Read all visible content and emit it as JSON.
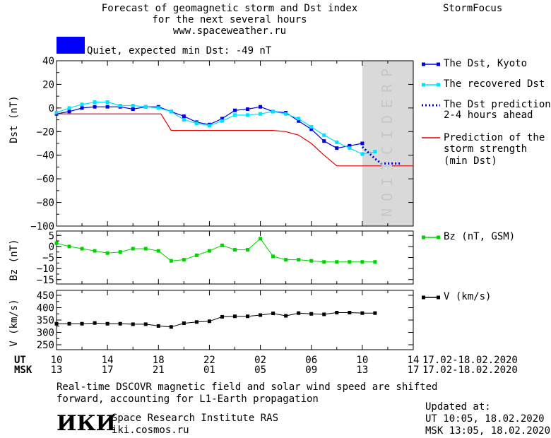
{
  "header": {
    "title_lines": [
      "Forecast of geomagnetic storm and Dst index",
      "for the next several hours",
      "www.spaceweather.ru"
    ],
    "brand": "StormFocus"
  },
  "status": {
    "text": "Quiet, expected min Dst: -49 nT",
    "color": "#0000ff"
  },
  "legend": {
    "dst_kyoto": "The Dst, Kyoto",
    "dst_recovered": "The recovered Dst",
    "dst_prediction_lines": [
      "The Dst prediction",
      "2-4 hours ahead"
    ],
    "storm_strength_lines": [
      "Prediction of the",
      "storm strength",
      "(min Dst)"
    ],
    "bz": "Bz (nT, GSM)",
    "v": "V (km/s)"
  },
  "prediction_label": "PREDICTION",
  "time_axis": {
    "ut_label": "UT",
    "msk_label": "MSK",
    "ut_ticks": [
      "10",
      "14",
      "18",
      "22",
      "02",
      "06",
      "10",
      "14"
    ],
    "msk_ticks": [
      "13",
      "17",
      "21",
      "01",
      "05",
      "09",
      "13",
      "17"
    ],
    "date_range_ut": "17.02-18.02.2020",
    "date_range_msk": "17.02-18.02.2020"
  },
  "footer": {
    "note_lines": [
      "Real-time DSCOVR magnetic field and solar wind speed are shifted",
      "forward, accounting for L1-Earth propagation"
    ],
    "logo_text": "ИКИ",
    "institute": "Space Research Institute RAS",
    "site": "iki.cosmos.ru",
    "updated_label": "Updated at:",
    "updated_ut": "UT   10:05, 18.02.2020",
    "updated_msk": "MSK 13:05, 18.02.2020"
  },
  "chart_data": [
    {
      "type": "line",
      "ylabel": "Dst (nT)",
      "ylim": [
        -100,
        40
      ],
      "yticks": [
        "40",
        "20",
        "0",
        "-20",
        "-40",
        "-60",
        "-80",
        "-100"
      ],
      "x_unit": "hours after 10 UT 17.02",
      "xlim": [
        0,
        28
      ],
      "prediction_zone": [
        24,
        28
      ],
      "series": [
        {
          "name": "The Dst, Kyoto",
          "color": "#0000dd",
          "x": [
            0,
            1,
            2,
            3,
            4,
            5,
            6,
            7,
            8,
            9,
            10,
            11,
            12,
            13,
            14,
            15,
            16,
            17,
            18,
            19,
            20,
            21,
            22,
            23,
            24
          ],
          "y": [
            -5,
            -3,
            0,
            1,
            1,
            1,
            -1,
            1,
            1,
            -3,
            -7,
            -12,
            -14,
            -9,
            -2,
            -1,
            1,
            -3,
            -4,
            -11,
            -18,
            -28,
            -34,
            -32,
            -30
          ]
        },
        {
          "name": "The recovered Dst",
          "color": "#00e0ff",
          "x": [
            0,
            1,
            2,
            3,
            4,
            5,
            6,
            7,
            8,
            9,
            10,
            11,
            12,
            13,
            14,
            15,
            16,
            17,
            18,
            19,
            20,
            21,
            22,
            23,
            24,
            25
          ],
          "y": [
            -4,
            0,
            3,
            5,
            5,
            2,
            2,
            1,
            0,
            -3,
            -10,
            -13,
            -15,
            -11,
            -6,
            -6,
            -5,
            -3,
            -5,
            -9,
            -16,
            -23,
            -29,
            -34,
            -39,
            -37
          ]
        },
        {
          "name": "The Dst prediction 2-4 hours ahead",
          "color": "#0000cc",
          "x": [
            24,
            25,
            25.5,
            27
          ],
          "y": [
            -33,
            -43,
            -47,
            -47
          ]
        },
        {
          "name": "Prediction of the storm strength (min Dst)",
          "color": "#dd0000",
          "x": [
            0,
            8.2,
            9,
            14,
            16,
            17,
            18,
            19,
            20,
            21,
            22,
            28
          ],
          "y": [
            -5,
            -5,
            -19,
            -19,
            -19,
            -19,
            -20,
            -23,
            -30,
            -40,
            -49,
            -49
          ]
        }
      ]
    },
    {
      "type": "line",
      "ylabel": "Bz (nT)",
      "ylim": [
        -17,
        7
      ],
      "yticks": [
        "5",
        "0",
        "-5",
        "-10",
        "-15"
      ],
      "series": [
        {
          "name": "Bz (nT, GSM)",
          "color": "#00d000",
          "x": [
            0,
            1,
            2,
            3,
            4,
            5,
            6,
            7,
            8,
            9,
            10,
            11,
            12,
            13,
            14,
            15,
            16,
            17,
            18,
            19,
            20,
            21,
            22,
            23,
            24,
            25
          ],
          "y": [
            1.5,
            0,
            -1,
            -2,
            -3,
            -2.5,
            -1,
            -1,
            -2,
            -6.5,
            -6,
            -4,
            -2,
            0.5,
            -1.5,
            -1.5,
            3.5,
            -4.5,
            -6,
            -6,
            -6.5,
            -7,
            -7,
            -7,
            -7,
            -7
          ]
        }
      ]
    },
    {
      "type": "line",
      "ylabel": "V (km/s)",
      "ylim": [
        230,
        470
      ],
      "yticks": [
        "450",
        "400",
        "350",
        "300",
        "250"
      ],
      "series": [
        {
          "name": "V (km/s)",
          "color": "#000000",
          "x": [
            0,
            1,
            2,
            3,
            4,
            5,
            6,
            7,
            8,
            9,
            10,
            11,
            12,
            13,
            14,
            15,
            16,
            17,
            18,
            19,
            20,
            21,
            22,
            23,
            24,
            25
          ],
          "y": [
            335,
            335,
            335,
            338,
            335,
            335,
            333,
            333,
            326,
            322,
            337,
            342,
            345,
            363,
            365,
            365,
            370,
            377,
            367,
            378,
            375,
            373,
            380,
            380,
            378,
            378
          ]
        }
      ]
    }
  ]
}
